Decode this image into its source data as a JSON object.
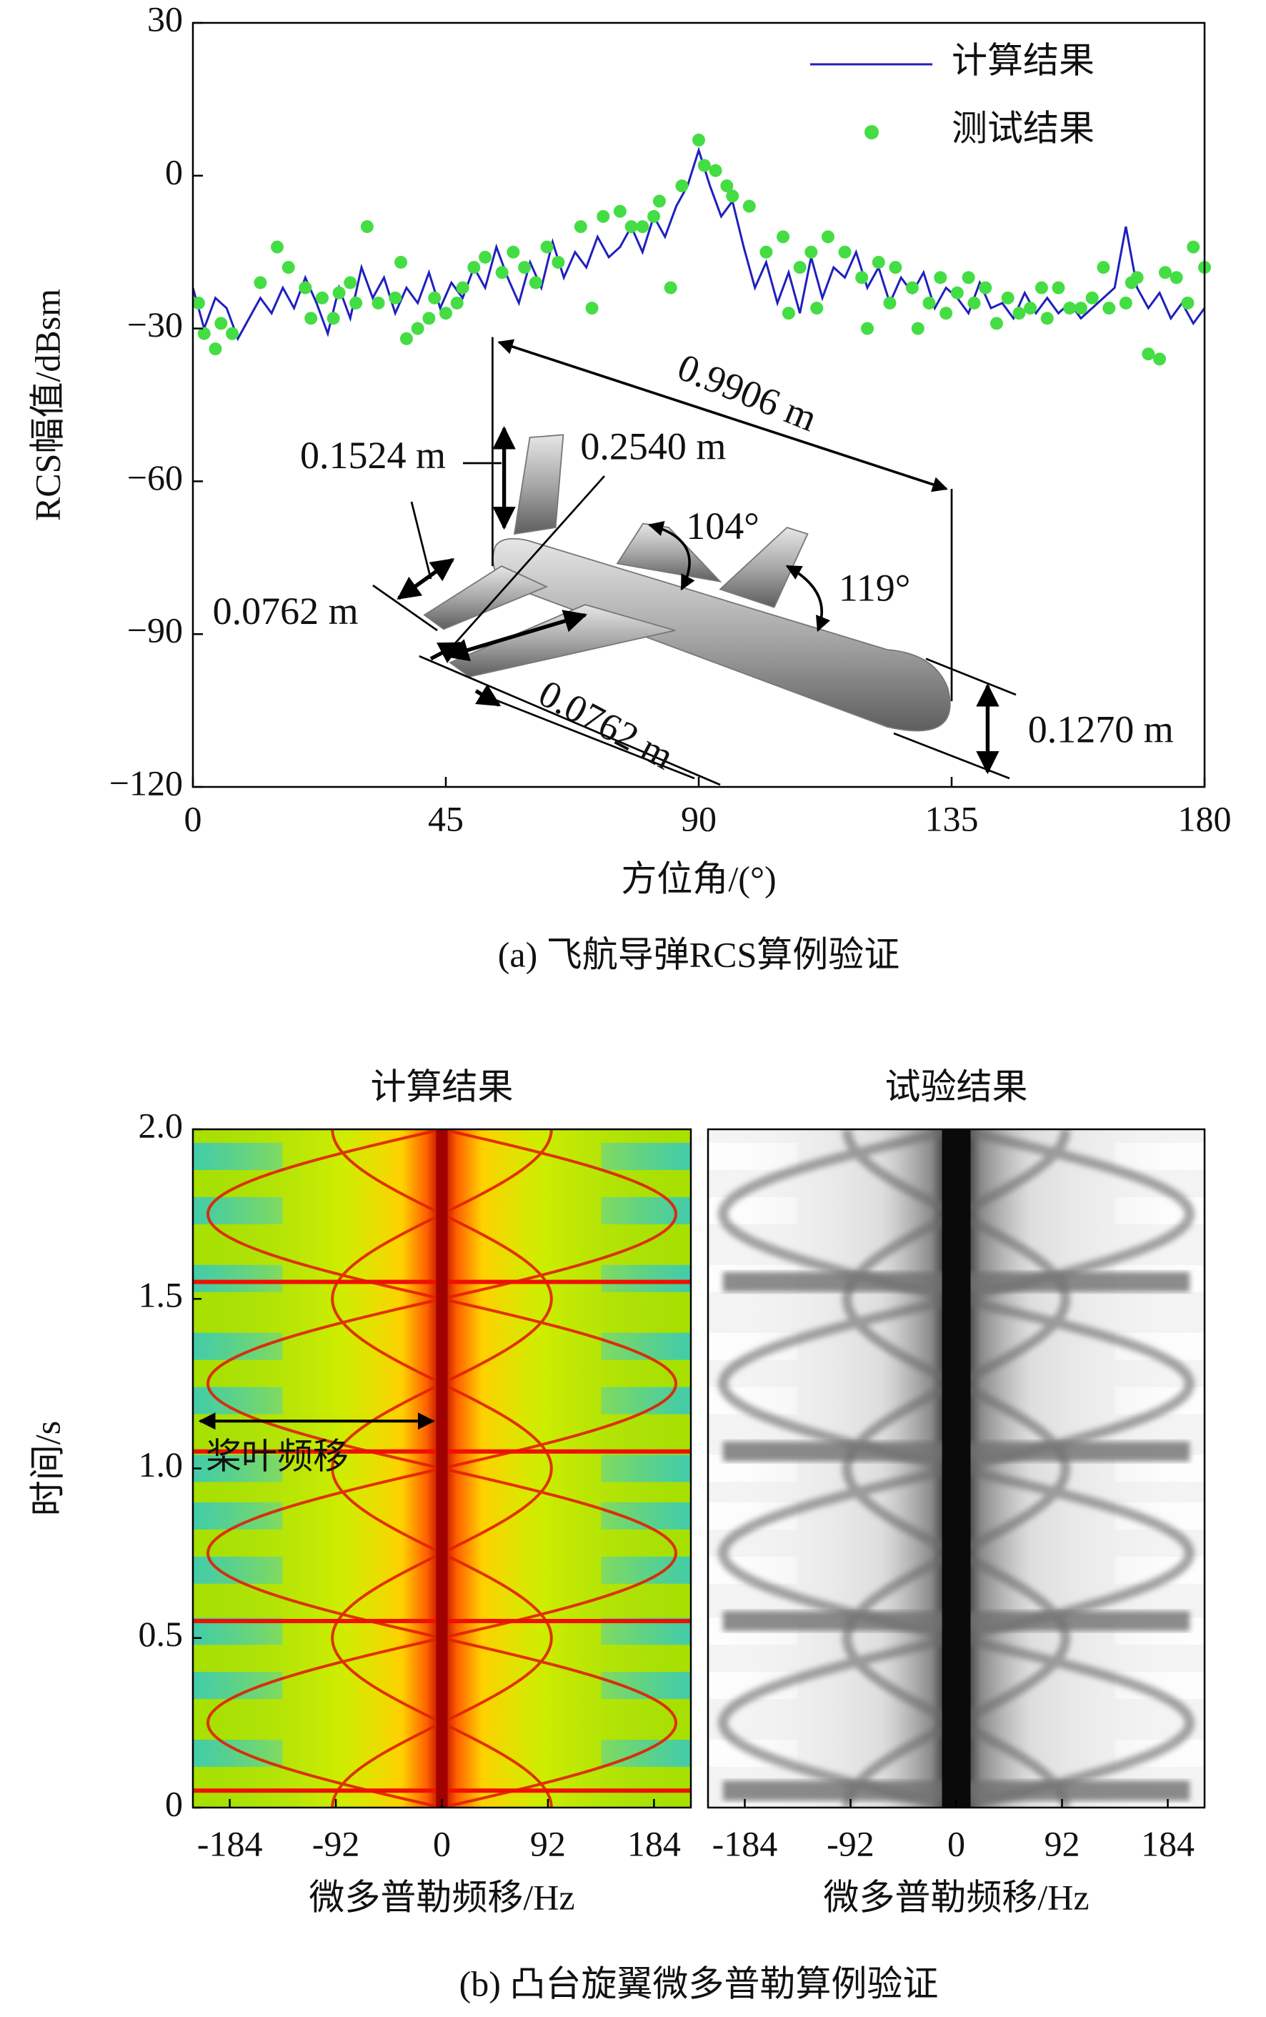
{
  "chart_data": [
    {
      "type": "line",
      "ylabel": "RCS幅值/dBsm",
      "xlabel": "方位角/(°)",
      "caption": "(a) 飞航导弹RCS算例验证",
      "xlim": [
        0,
        180
      ],
      "xticks": [
        0,
        45,
        90,
        135,
        180
      ],
      "ylim": [
        -120,
        30
      ],
      "yticks": [
        {
          "value": -120,
          "label": "−120"
        },
        {
          "value": -90,
          "label": "−90"
        },
        {
          "value": -60,
          "label": "−60"
        },
        {
          "value": -30,
          "label": "−30"
        },
        0,
        30
      ],
      "legend": "upper right",
      "annotations": [
        "0.9906 m",
        "0.1524 m",
        "0.2540 m",
        "104°",
        "119°",
        "0.0762 m",
        "0.0762 m",
        "0.1270 m"
      ],
      "series": [
        {
          "name": "计算结果",
          "color": "#1f1fbf",
          "mark": "line",
          "x": [
            0,
            2,
            4,
            6,
            8,
            10,
            12,
            14,
            16,
            18,
            20,
            22,
            24,
            26,
            28,
            30,
            32,
            34,
            36,
            38,
            40,
            42,
            44,
            46,
            48,
            50,
            52,
            54,
            56,
            58,
            60,
            62,
            64,
            66,
            68,
            70,
            72,
            74,
            76,
            78,
            80,
            82,
            84,
            86,
            88,
            90,
            92,
            94,
            96,
            98,
            100,
            102,
            104,
            106,
            108,
            110,
            112,
            114,
            116,
            118,
            120,
            122,
            124,
            126,
            128,
            130,
            132,
            134,
            136,
            138,
            140,
            142,
            144,
            146,
            148,
            150,
            152,
            154,
            156,
            158,
            160,
            162,
            164,
            166,
            168,
            170,
            172,
            174,
            176,
            178,
            180
          ],
          "values": [
            -22,
            -30,
            -24,
            -26,
            -32,
            -28,
            -24,
            -27,
            -22,
            -26,
            -20,
            -25,
            -31,
            -22,
            -28,
            -18,
            -24,
            -20,
            -27,
            -22,
            -25,
            -19,
            -26,
            -21,
            -24,
            -18,
            -22,
            -14,
            -20,
            -25,
            -17,
            -22,
            -13,
            -20,
            -15,
            -18,
            -12,
            -16,
            -14,
            -10,
            -15,
            -8,
            -12,
            -6,
            -2,
            5,
            -2,
            -8,
            -5,
            -14,
            -22,
            -17,
            -25,
            -19,
            -27,
            -16,
            -24,
            -18,
            -20,
            -15,
            -22,
            -18,
            -25,
            -20,
            -23,
            -19,
            -26,
            -22,
            -24,
            -27,
            -21,
            -26,
            -25,
            -28,
            -23,
            -27,
            -24,
            -27,
            -25,
            -28,
            -26,
            -24,
            -22,
            -10,
            -22,
            -26,
            -23,
            -28,
            -25,
            -29,
            -26
          ]
        },
        {
          "name": "测试结果",
          "color": "#44dd44",
          "mark": "scatter",
          "x": [
            1,
            2,
            4,
            5,
            7,
            12,
            15,
            17,
            20,
            21,
            23,
            25,
            26,
            28,
            29,
            31,
            33,
            36,
            37,
            38,
            40,
            42,
            43,
            45,
            47,
            48,
            50,
            52,
            55,
            57,
            59,
            61,
            63,
            65,
            69,
            71,
            73,
            76,
            78,
            80,
            82,
            83,
            85,
            87,
            90,
            91,
            93,
            95,
            96,
            99,
            102,
            105,
            106,
            108,
            110,
            111,
            113,
            116,
            119,
            120,
            122,
            124,
            125,
            128,
            129,
            131,
            133,
            134,
            136,
            138,
            139,
            141,
            143,
            145,
            147,
            149,
            151,
            152,
            154,
            156,
            158,
            160,
            162,
            163,
            166,
            167,
            168,
            170,
            172,
            173,
            175,
            177,
            178,
            180
          ],
          "values": [
            -25,
            -31,
            -34,
            -29,
            -31,
            -21,
            -14,
            -18,
            -22,
            -28,
            -24,
            -28,
            -23,
            -21,
            -25,
            -10,
            -25,
            -24,
            -17,
            -32,
            -30,
            -28,
            -24,
            -27,
            -25,
            -22,
            -18,
            -16,
            -19,
            -15,
            -18,
            -21,
            -14,
            -17,
            -10,
            -26,
            -8,
            -7,
            -10,
            -10,
            -8,
            -5,
            -22,
            -2,
            7,
            2,
            1,
            -2,
            -4,
            -6,
            -15,
            -12,
            -27,
            -18,
            -15,
            -26,
            -12,
            -15,
            -20,
            -30,
            -17,
            -25,
            -18,
            -22,
            -30,
            -25,
            -20,
            -27,
            -23,
            -20,
            -25,
            -22,
            -29,
            -24,
            -27,
            -26,
            -22,
            -28,
            -22,
            -26,
            -26,
            -24,
            -18,
            -26,
            -25,
            -21,
            -20,
            -35,
            -36,
            -19,
            -20,
            -25,
            -14,
            -18
          ]
        }
      ]
    },
    {
      "type": "spectrogram",
      "title": "计算结果",
      "colormap": "jet",
      "xlabel": "微多普勒频移/Hz",
      "ylabel": "时间/s",
      "caption": "(b) 凸台旋翼微多普勒算例验证",
      "annotation": "桨叶频移",
      "xlim": [
        -216,
        216
      ],
      "xticks": [
        -184,
        -92,
        0,
        92,
        184
      ],
      "ylim": [
        0,
        2
      ],
      "yticks": [
        0,
        0.5,
        {
          "value": 1,
          "label": "1.0"
        },
        1.5,
        {
          "value": 2,
          "label": "2.0"
        }
      ]
    },
    {
      "type": "spectrogram",
      "title": "试验结果",
      "colormap": "gray",
      "xlabel": "微多普勒频移/Hz",
      "xlim": [
        -216,
        216
      ],
      "xticks": [
        -184,
        -92,
        0,
        92,
        184
      ],
      "ylim": [
        0,
        2
      ]
    }
  ]
}
